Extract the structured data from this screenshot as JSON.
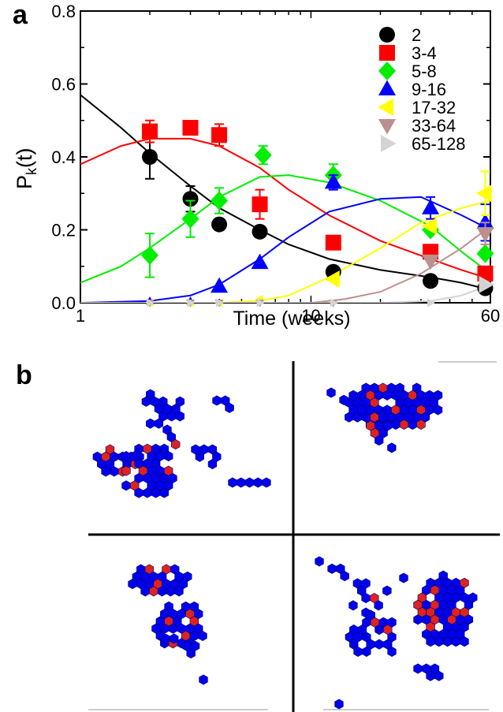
{
  "panel_labels": {
    "a": "a",
    "b": "b"
  },
  "chart_data": {
    "type": "scatter",
    "xlabel": "Time (weeks)",
    "ylabel_main": "P",
    "ylabel_sub": "k",
    "ylabel_tail": "(t)",
    "xscale": "log",
    "xlim": [
      1,
      60
    ],
    "ylim": [
      0,
      0.8
    ],
    "xticks": [
      {
        "value": 1,
        "label": "1"
      },
      {
        "value": 10,
        "label": "10"
      },
      {
        "value": 60,
        "label": "60"
      }
    ],
    "yticks": [
      {
        "value": 0.0,
        "label": "0.0"
      },
      {
        "value": 0.2,
        "label": "0.2"
      },
      {
        "value": 0.4,
        "label": "0.4"
      },
      {
        "value": 0.6,
        "label": "0.6"
      },
      {
        "value": 0.8,
        "label": "0.8"
      }
    ],
    "legend_position": "top-right",
    "series": [
      {
        "name": "2",
        "color": "#000000",
        "marker": "circle",
        "points": [
          [
            2.0,
            0.4,
            0.06
          ],
          [
            3.0,
            0.285,
            0.035
          ],
          [
            4.0,
            0.215,
            0
          ],
          [
            6.0,
            0.195,
            0
          ],
          [
            12.5,
            0.085,
            0
          ],
          [
            33,
            0.06,
            0
          ],
          [
            57,
            0.04,
            0
          ]
        ],
        "curve": [
          [
            1,
            0.57
          ],
          [
            1.5,
            0.48
          ],
          [
            2,
            0.41
          ],
          [
            3,
            0.32
          ],
          [
            4,
            0.26
          ],
          [
            6,
            0.2
          ],
          [
            8,
            0.16
          ],
          [
            12,
            0.12
          ],
          [
            20,
            0.09
          ],
          [
            33,
            0.07
          ],
          [
            45,
            0.055
          ],
          [
            60,
            0.035
          ]
        ]
      },
      {
        "name": "3-4",
        "color": "#ff0000",
        "marker": "square",
        "points": [
          [
            2.0,
            0.47,
            0.03
          ],
          [
            3.0,
            0.48,
            0
          ],
          [
            4.0,
            0.46,
            0.03
          ],
          [
            6.0,
            0.27,
            0.04
          ],
          [
            12.5,
            0.165,
            0
          ],
          [
            33,
            0.14,
            0
          ],
          [
            57,
            0.08,
            0.02
          ]
        ],
        "curve": [
          [
            1,
            0.38
          ],
          [
            1.5,
            0.43
          ],
          [
            2,
            0.45
          ],
          [
            3,
            0.45
          ],
          [
            4,
            0.43
          ],
          [
            6,
            0.37
          ],
          [
            8,
            0.31
          ],
          [
            12,
            0.24
          ],
          [
            20,
            0.17
          ],
          [
            33,
            0.12
          ],
          [
            45,
            0.09
          ],
          [
            60,
            0.065
          ]
        ]
      },
      {
        "name": "5-8",
        "color": "#00ee00",
        "marker": "diamond",
        "points": [
          [
            2.0,
            0.13,
            0.06
          ],
          [
            3.0,
            0.23,
            0.05
          ],
          [
            4.0,
            0.28,
            0.035
          ],
          [
            6.2,
            0.405,
            0.025
          ],
          [
            12.5,
            0.35,
            0.03
          ],
          [
            33,
            0.2,
            0
          ],
          [
            57,
            0.135,
            0
          ]
        ],
        "curve": [
          [
            1,
            0.055
          ],
          [
            1.5,
            0.1
          ],
          [
            2,
            0.15
          ],
          [
            3,
            0.23
          ],
          [
            4,
            0.29
          ],
          [
            6,
            0.345
          ],
          [
            8,
            0.35
          ],
          [
            12,
            0.33
          ],
          [
            20,
            0.28
          ],
          [
            33,
            0.21
          ],
          [
            45,
            0.14
          ],
          [
            60,
            0.08
          ]
        ]
      },
      {
        "name": "9-16",
        "color": "#0000ff",
        "marker": "triangle-up",
        "points": [
          [
            2.0,
            0.005,
            0
          ],
          [
            3.0,
            0.005,
            0
          ],
          [
            4.0,
            0.045,
            0
          ],
          [
            6.0,
            0.11,
            0
          ],
          [
            12.5,
            0.33,
            0.02
          ],
          [
            33,
            0.26,
            0.03
          ],
          [
            57,
            0.22,
            0.05
          ]
        ],
        "curve": [
          [
            1,
            0.0
          ],
          [
            2,
            0.005
          ],
          [
            3,
            0.02
          ],
          [
            4,
            0.05
          ],
          [
            6,
            0.12
          ],
          [
            8,
            0.18
          ],
          [
            12,
            0.25
          ],
          [
            20,
            0.285
          ],
          [
            30,
            0.29
          ],
          [
            45,
            0.24
          ],
          [
            60,
            0.2
          ]
        ]
      },
      {
        "name": "17-32",
        "color": "#ffff00",
        "marker": "triangle-left",
        "points": [
          [
            2.0,
            0.0,
            0
          ],
          [
            3.0,
            0.0,
            0
          ],
          [
            4.0,
            0.0,
            0
          ],
          [
            6.0,
            0.01,
            0
          ],
          [
            12.5,
            0.065,
            0
          ],
          [
            33,
            0.21,
            0
          ],
          [
            57,
            0.3,
            0.06
          ]
        ],
        "curve": [
          [
            1,
            0.0
          ],
          [
            4,
            0.0
          ],
          [
            6,
            0.005
          ],
          [
            8,
            0.02
          ],
          [
            12,
            0.07
          ],
          [
            20,
            0.15
          ],
          [
            30,
            0.22
          ],
          [
            45,
            0.26
          ],
          [
            60,
            0.28
          ]
        ]
      },
      {
        "name": "33-64",
        "color": "#bc8f8f",
        "marker": "triangle-down",
        "points": [
          [
            2.0,
            0.0,
            0
          ],
          [
            3.0,
            0.0,
            0
          ],
          [
            4.0,
            0.0,
            0
          ],
          [
            6.0,
            0.0,
            0
          ],
          [
            12.5,
            0.0,
            0
          ],
          [
            33,
            0.115,
            0
          ],
          [
            57,
            0.19,
            0.03
          ]
        ],
        "curve": [
          [
            1,
            0.0
          ],
          [
            10,
            0.0
          ],
          [
            14,
            0.01
          ],
          [
            20,
            0.03
          ],
          [
            30,
            0.08
          ],
          [
            45,
            0.15
          ],
          [
            60,
            0.21
          ]
        ]
      },
      {
        "name": "65-128",
        "color": "#d3d3d3",
        "marker": "triangle-right",
        "points": [
          [
            2.0,
            0.0,
            0
          ],
          [
            3.0,
            0.0,
            0
          ],
          [
            4.0,
            0.0,
            0
          ],
          [
            6.0,
            0.0,
            0
          ],
          [
            12.5,
            0.0,
            0
          ],
          [
            33,
            0.0,
            0
          ],
          [
            57,
            0.05,
            0
          ]
        ],
        "curve": [
          [
            1,
            0.0
          ],
          [
            20,
            0.0
          ],
          [
            33,
            0.005
          ],
          [
            45,
            0.02
          ],
          [
            60,
            0.05
          ]
        ]
      }
    ]
  },
  "panel_b": {
    "colors": {
      "node": "#0000ee",
      "highlight": "#dd2222",
      "outline": "#000066"
    }
  }
}
